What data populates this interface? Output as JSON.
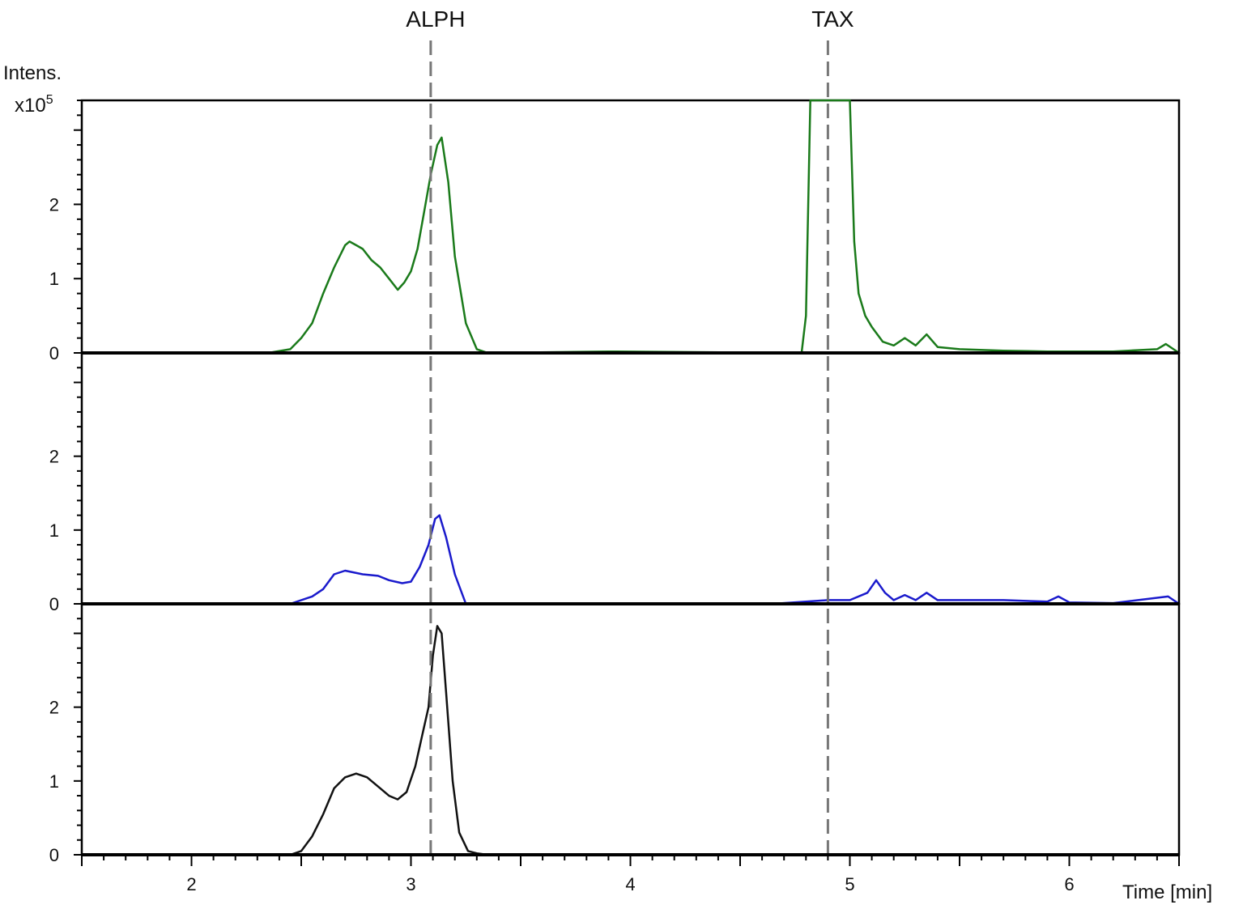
{
  "chart_data": {
    "type": "line",
    "y_unit_label": "Intens.",
    "y_scale_label_base": "x10",
    "y_scale_label_exp": "5",
    "xlabel": "Time [min]",
    "xlim": [
      1.5,
      6.5
    ],
    "x_ticks": [
      "2",
      "3",
      "4",
      "5",
      "6"
    ],
    "markers": [
      {
        "label": "ALPH",
        "x": 3.09
      },
      {
        "label": "TAX",
        "x": 4.9
      }
    ],
    "panels": [
      {
        "color": "#1a7a1a",
        "ylim": [
          0,
          3.4
        ],
        "y_ticks": [
          "0",
          "1",
          "2"
        ],
        "x": [
          2.35,
          2.45,
          2.5,
          2.55,
          2.6,
          2.65,
          2.7,
          2.72,
          2.75,
          2.78,
          2.82,
          2.86,
          2.9,
          2.94,
          2.97,
          3.0,
          3.03,
          3.06,
          3.09,
          3.12,
          3.14,
          3.17,
          3.2,
          3.25,
          3.3,
          3.35,
          3.9,
          4.78,
          4.8,
          4.82,
          4.9,
          5.0,
          5.02,
          5.04,
          5.07,
          5.1,
          5.15,
          5.2,
          5.25,
          5.3,
          5.35,
          5.4,
          5.5,
          5.7,
          5.9,
          6.2,
          6.4,
          6.44,
          6.5
        ],
        "y": [
          0,
          0.05,
          0.2,
          0.4,
          0.8,
          1.15,
          1.45,
          1.5,
          1.45,
          1.4,
          1.25,
          1.15,
          1.0,
          0.85,
          0.95,
          1.1,
          1.4,
          1.9,
          2.4,
          2.8,
          2.9,
          2.3,
          1.3,
          0.4,
          0.05,
          0.0,
          0.02,
          0.0,
          0.5,
          3.4,
          3.4,
          3.4,
          1.5,
          0.8,
          0.5,
          0.35,
          0.15,
          0.1,
          0.2,
          0.1,
          0.25,
          0.08,
          0.05,
          0.03,
          0.02,
          0.02,
          0.05,
          0.12,
          0.0
        ]
      },
      {
        "color": "#1a1acc",
        "ylim": [
          0,
          3.4
        ],
        "y_ticks": [
          "0",
          "1",
          "2"
        ],
        "x": [
          2.45,
          2.55,
          2.6,
          2.65,
          2.7,
          2.78,
          2.85,
          2.9,
          2.96,
          3.0,
          3.04,
          3.08,
          3.11,
          3.13,
          3.16,
          3.2,
          3.25,
          4.65,
          4.9,
          5.0,
          5.08,
          5.12,
          5.16,
          5.2,
          5.25,
          5.3,
          5.35,
          5.4,
          5.5,
          5.7,
          5.9,
          5.95,
          6.0,
          6.2,
          6.45,
          6.5
        ],
        "y": [
          0,
          0.1,
          0.2,
          0.4,
          0.45,
          0.4,
          0.38,
          0.32,
          0.28,
          0.3,
          0.5,
          0.8,
          1.15,
          1.2,
          0.9,
          0.4,
          0.0,
          0.0,
          0.05,
          0.05,
          0.15,
          0.32,
          0.15,
          0.05,
          0.12,
          0.05,
          0.15,
          0.05,
          0.05,
          0.05,
          0.03,
          0.1,
          0.02,
          0.01,
          0.1,
          0.0
        ]
      },
      {
        "color": "#111111",
        "ylim": [
          0,
          3.4
        ],
        "y_ticks": [
          "0",
          "1",
          "2"
        ],
        "x": [
          2.45,
          2.5,
          2.55,
          2.6,
          2.65,
          2.7,
          2.75,
          2.8,
          2.86,
          2.9,
          2.94,
          2.98,
          3.02,
          3.05,
          3.08,
          3.1,
          3.12,
          3.14,
          3.16,
          3.19,
          3.22,
          3.26,
          3.3,
          3.35
        ],
        "y": [
          0,
          0.05,
          0.25,
          0.55,
          0.9,
          1.05,
          1.1,
          1.05,
          0.9,
          0.8,
          0.75,
          0.85,
          1.2,
          1.6,
          2.0,
          2.7,
          3.1,
          3.0,
          2.2,
          1.0,
          0.3,
          0.05,
          0.02,
          0.0
        ]
      }
    ]
  }
}
